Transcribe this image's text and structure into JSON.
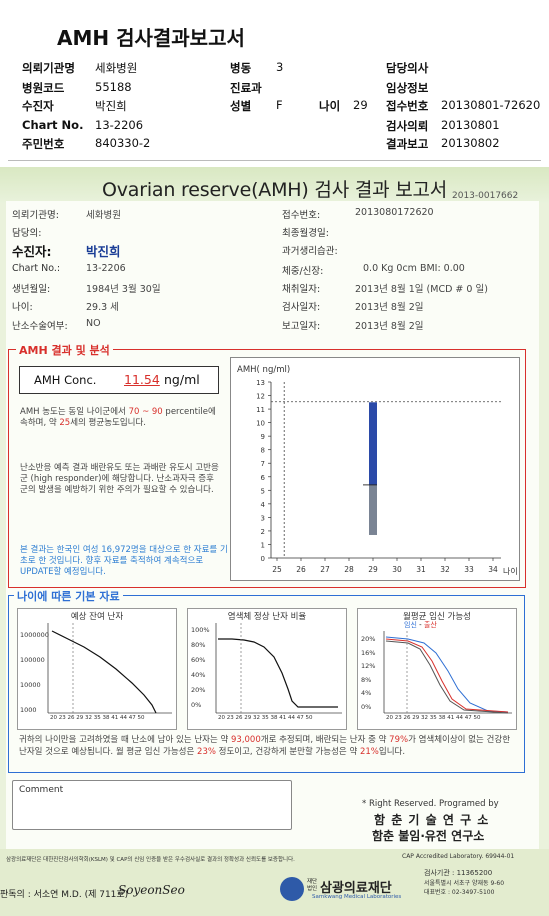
{
  "header": {
    "title": "AMH 검사결과보고서",
    "rows": [
      [
        {
          "l": "의뢰기관명",
          "v": "세화병원"
        },
        {
          "l": "병동",
          "v": "3"
        },
        {
          "l": "담당의사",
          "v": ""
        }
      ],
      [
        {
          "l": "병원코드",
          "v": "55188"
        },
        {
          "l": "진료과",
          "v": ""
        },
        {
          "l": "임상정보",
          "v": ""
        }
      ],
      [
        {
          "l": "수진자",
          "v": "박진희"
        },
        {
          "l": "성별",
          "v": "F"
        },
        {
          "l": "나이",
          "v": "29"
        },
        {
          "l": "접수번호",
          "v": "20130801-72620"
        }
      ],
      [
        {
          "l": "Chart No.",
          "v": "13-2206"
        },
        {
          "l": "검사의뢰",
          "v": "20130801"
        }
      ],
      [
        {
          "l": "주민번호",
          "v": "840330-2"
        },
        {
          "l": "결과보고",
          "v": "20130802"
        }
      ]
    ]
  },
  "report": {
    "title": "Ovarian reserve(AMH) 검사 결과 보고서",
    "doc_no": "2013-0017662",
    "left_info": [
      {
        "l": "의뢰기관명:",
        "v": "세화병원"
      },
      {
        "l": "담당의:",
        "v": ""
      },
      {
        "l": "수진자:",
        "v": "박진희"
      },
      {
        "l": "Chart No.:",
        "v": "13-2206"
      },
      {
        "l": "생년월일:",
        "v": "1984년 3월 30일"
      },
      {
        "l": "나이:",
        "v": "29.3 세"
      },
      {
        "l": "난소수술여부:",
        "v": "NO"
      }
    ],
    "right_info": [
      {
        "l": "접수번호:",
        "v": "2013080172620"
      },
      {
        "l": "최종월경일:",
        "v": ""
      },
      {
        "l": "과거생리습관:",
        "v": ""
      },
      {
        "l": "체중/신장:",
        "v": "0.0 Kg      0cm    BMI:   0.00"
      },
      {
        "l": "채취일자:",
        "v": "2013년 8월 1일      (MCD # 0 일)"
      },
      {
        "l": "검사일자:",
        "v": "2013년 8월 2일"
      },
      {
        "l": "보고일자:",
        "v": "2013년 8월 2일"
      }
    ]
  },
  "amh_section": {
    "title": "AMH 결과 및 분석",
    "conc_label": "AMH Conc.",
    "conc_value": "11.54",
    "conc_unit": "ng/ml",
    "para1_a": "AMH 농도는 동일 나이군에서 ",
    "para1_pct": "70 ~ 90",
    "para1_b": " percentile에 속하며, 약 ",
    "para1_age": "25",
    "para1_c": "세의 평균농도입니다.",
    "para2": "난소반응 예측 결과 배란유도 또는 과배란 유도시 고반응군 (high responder)에 해당합니다. 난소과자극 증후군의 발생을 예방하기 위한 주의가 필요할 수 있습니다.",
    "para3": "본 결과는 한국인 여성 16,972명을 대상으로 한 자료를 기초로 한 것입니다. 향후 자료를 축적하여 계속적으로 UPDATE할 예정입니다."
  },
  "chart_data": {
    "type": "bar",
    "title": "",
    "ylabel": "AMH( ng/ml)",
    "xlabel": "나이",
    "x_ticks": [
      25,
      26,
      27,
      28,
      29,
      30,
      31,
      32,
      33,
      34
    ],
    "ylim": [
      0,
      13
    ],
    "y_ticks": [
      0,
      1,
      2,
      3,
      4,
      5,
      6,
      7,
      8,
      9,
      10,
      11,
      12,
      13
    ],
    "patient_age": 29.3,
    "patient_value": 11.54,
    "bar": {
      "x": 29,
      "low": 1.7,
      "mid": 5.4,
      "high": 11.5,
      "upper_color": "#2b4aa8",
      "lower_color": "#7a8494"
    }
  },
  "age_section": {
    "title": "나이에 따른 기본 자료",
    "chart1_title": "예상 잔여 난자",
    "chart1_y": [
      "1000000",
      "100000",
      "10000",
      "1000"
    ],
    "chart2_title": "염색체 정상 난자 비율",
    "chart2_y": [
      "100%",
      "80%",
      "60%",
      "40%",
      "20%",
      "0%"
    ],
    "chart3_title": "월평균 임신 가능성",
    "chart3_legend_a": "임신",
    "chart3_legend_b": "출산",
    "chart3_y": [
      "20%",
      "16%",
      "12%",
      "8%",
      "4%",
      "0%"
    ],
    "x_ticks": "20 23 26 29 32 35 38 41 44 47 50",
    "note_a": "귀하의 나이만을 고려하였을 때 난소에 남아 있는 난자는 약 ",
    "note_eggs": "93,000",
    "note_b": "개로 추정되며, 배란되는 난자 중 약 ",
    "note_pct1": "79%",
    "note_c": "가 염색체이상이 없는 건강한 난자일 것으로 예상됩니다. 월 평균 임신 가능성은 ",
    "note_pct2": "23%",
    "note_d": " 정도이고, 건강하게 분만할 가능성은 약 ",
    "note_pct3": "21%",
    "note_e": "입니다."
  },
  "comment": {
    "label": "Comment"
  },
  "footer": {
    "rights": "* Right Reserved. Programed by",
    "org1": "함 춘 기 술 연 구 소",
    "org2": "함춘 불임·유전 연구소",
    "disclaimer": "삼광의료재단은 대한진단검사의학회(KSLM) 및 CAP의 신임 인증을 받은 우수검사실로 결과의 정확성과 신뢰도를 보증합니다.",
    "cap": "CAP Accredited Laboratory. 69944-01",
    "signer": "판독의 : 서소연 M.D. (제 711호)",
    "signature": "SoyeonSeo",
    "brand_small": "재단법인",
    "brand": "삼광의료재단",
    "brand_en": "Samkwang Medical Laboratories",
    "inst_no": "검사기관 : 11365200",
    "address": "서울특별시 서초구 양재동 9-60",
    "tel": "대표번호 : 02-3497-5100"
  }
}
